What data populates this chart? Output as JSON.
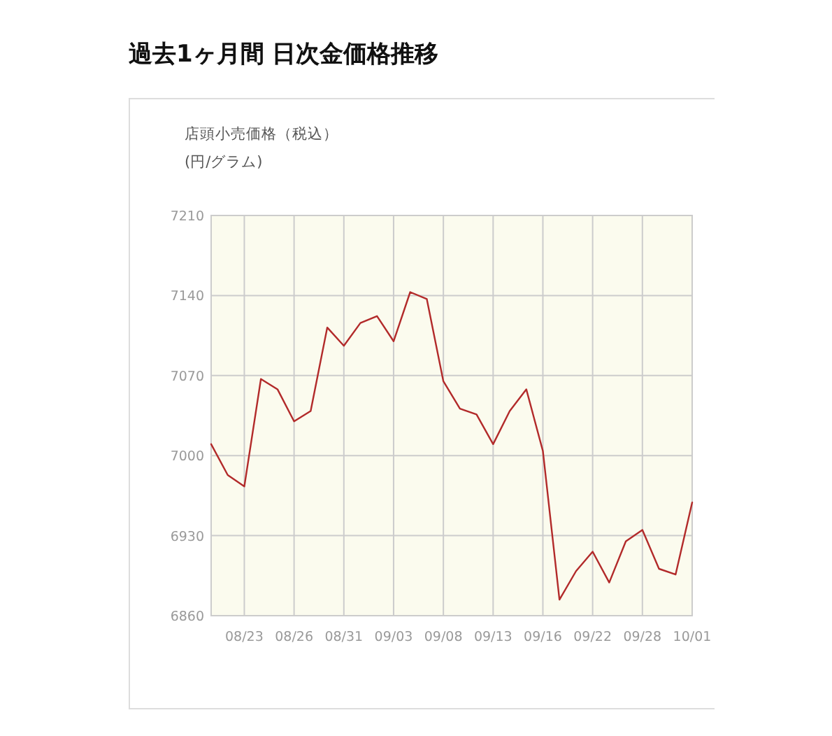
{
  "chart_data": {
    "type": "line",
    "title": "過去1ヶ月間 日次金価格推移",
    "subtitle": "店頭小売価格（税込）",
    "ylabel": "(円/グラム)",
    "categories": [
      null,
      null,
      "08/23",
      null,
      null,
      "08/26",
      null,
      null,
      "08/31",
      null,
      null,
      "09/03",
      null,
      null,
      "09/08",
      null,
      null,
      "09/13",
      null,
      null,
      "09/16",
      null,
      null,
      "09/22",
      null,
      null,
      "09/28",
      null,
      null,
      "10/01"
    ],
    "series": [
      {
        "color": "#b22a2a",
        "values": [
          7010,
          6983,
          6973,
          7067,
          7058,
          7030,
          7039,
          7112,
          7096,
          7116,
          7122,
          7100,
          7143,
          7137,
          7065,
          7041,
          7036,
          7010,
          7039,
          7058,
          7004,
          6874,
          6899,
          6916,
          6889,
          6925,
          6935,
          6901,
          6896,
          6959
        ]
      }
    ],
    "ylim": [
      6860,
      7210
    ],
    "yticks": [
      6860,
      6930,
      7000,
      7070,
      7140,
      7210
    ],
    "grid": true
  }
}
